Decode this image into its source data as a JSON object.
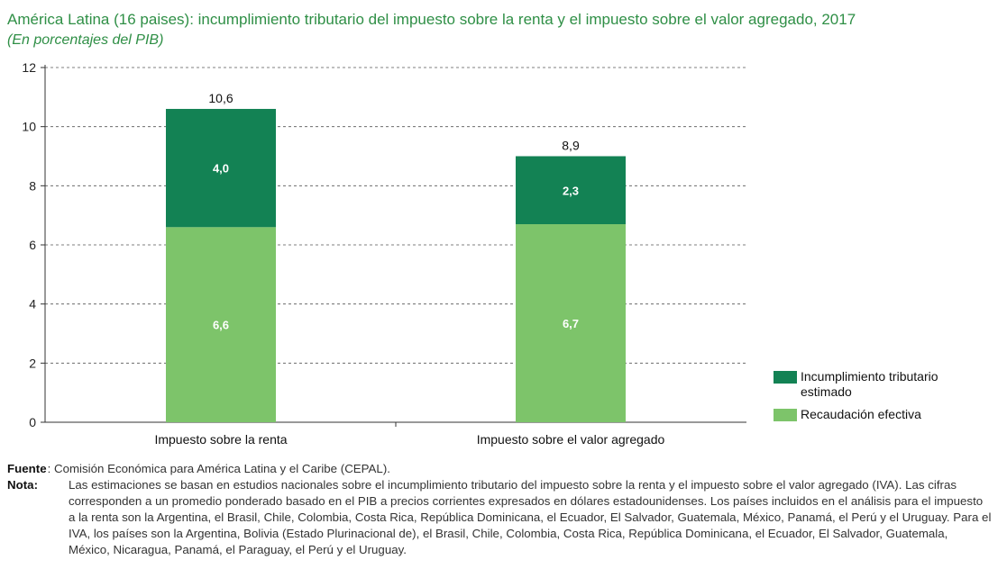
{
  "header": {
    "title": "América Latina (16 paises): incumplimiento tributario del impuesto sobre la renta y el impuesto sobre el valor agregado, 2017",
    "subtitle": "(En porcentajes del PIB)"
  },
  "chart_data": {
    "type": "bar",
    "stacked": true,
    "categories": [
      "Impuesto sobre la renta",
      "Impuesto sobre el valor agregado"
    ],
    "series": [
      {
        "name": "Recaudación efectiva",
        "values": [
          6.6,
          6.7
        ],
        "labels": [
          "6,6",
          "6,7"
        ],
        "color": "#7dc46a"
      },
      {
        "name": "Incumplimiento tributario estimado",
        "values": [
          4.0,
          2.3
        ],
        "labels": [
          "4,0",
          "2,3"
        ],
        "color": "#138254"
      }
    ],
    "totals": [
      10.6,
      8.9
    ],
    "total_labels": [
      "10,6",
      "8,9"
    ],
    "ylim": [
      0,
      12
    ],
    "yticks": [
      0,
      2,
      4,
      6,
      8,
      10,
      12
    ],
    "grid": "dashed-horizontal",
    "legend_position": "right",
    "xlabel": "",
    "ylabel": ""
  },
  "legend": {
    "items": [
      {
        "label": "Incumplimiento tributario estimado",
        "color": "#138254"
      },
      {
        "label": "Recaudación efectiva",
        "color": "#7dc46a"
      }
    ]
  },
  "notes": {
    "fuente_key": "Fuente",
    "fuente_text": ": Comisión Económica para América Latina y el Caribe (CEPAL).",
    "nota_key": "Nota",
    "nota_colon": ":",
    "nota_text": "Las estimaciones se basan en estudios nacionales sobre el incumplimiento tributario del impuesto sobre la renta y el impuesto sobre el valor agregado (IVA). Las cifras corresponden a un promedio ponderado basado en el PIB a precios corrientes expresados en dólares estadounidenses. Los países incluidos en el análisis para el impuesto a la renta son la Argentina, el Brasil, Chile, Colombia, Costa Rica, República Dominicana, el Ecuador, El Salvador, Guatemala, México, Panamá, el Perú y el Uruguay. Para el IVA, los países son la Argentina, Bolivia (Estado Plurinacional de), el Brasil, Chile, Colombia, Costa Rica, República Dominicana, el Ecuador, El Salvador, Guatemala, México, Nicaragua, Panamá, el Paraguay, el Perú y el Uruguay."
  }
}
